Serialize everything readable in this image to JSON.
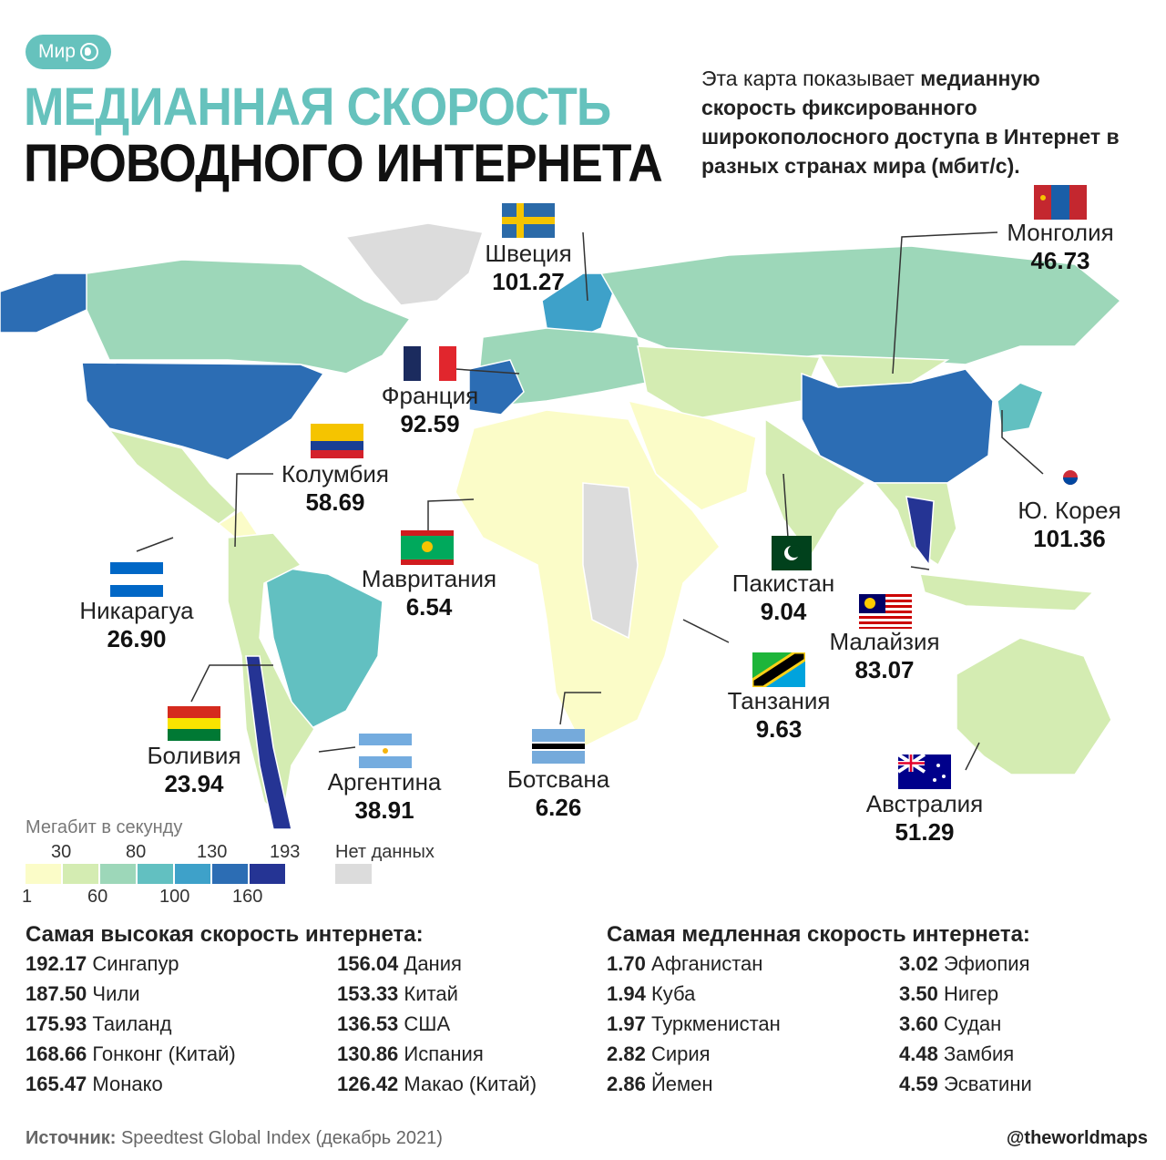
{
  "header": {
    "badge": "Мир",
    "badge_icon": "globe-icon",
    "title_line1": "МЕДИАННАЯ СКОРОСТЬ",
    "title_line2": "ПРОВОДНОГО ИНТЕРНЕТА",
    "description_pre": "Эта карта показывает ",
    "description_bold": "медианную скорость фиксированного широкополосного доступа в Интернет в разных странах мира (мбит/с).",
    "title_color": "#66c2bd"
  },
  "callouts": [
    {
      "name": "Швеция",
      "value": "101.27"
    },
    {
      "name": "Монголия",
      "value": "46.73"
    },
    {
      "name": "Франция",
      "value": "92.59"
    },
    {
      "name": "Колумбия",
      "value": "58.69"
    },
    {
      "name": "Ю. Корея",
      "value": "101.36"
    },
    {
      "name": "Мавритания",
      "value": "6.54"
    },
    {
      "name": "Пакистан",
      "value": "9.04"
    },
    {
      "name": "Никарагуа",
      "value": "26.90"
    },
    {
      "name": "Малайзия",
      "value": "83.07"
    },
    {
      "name": "Танзания",
      "value": "9.63"
    },
    {
      "name": "Боливия",
      "value": "23.94"
    },
    {
      "name": "Аргентина",
      "value": "38.91"
    },
    {
      "name": "Ботсвана",
      "value": "6.26"
    },
    {
      "name": "Австралия",
      "value": "51.29"
    }
  ],
  "legend": {
    "title": "Мегабит в секунду",
    "top_ticks": [
      "30",
      "80",
      "130",
      "193"
    ],
    "bottom_ticks": [
      "1",
      "60",
      "100",
      "160"
    ],
    "colors": [
      "#fbfcc8",
      "#d4ecb2",
      "#9dd7b9",
      "#62c0c1",
      "#3ea1c9",
      "#2c6db4",
      "#253494"
    ],
    "no_data_label": "Нет данных",
    "no_data_color": "#dcdcdc"
  },
  "fastest": {
    "title": "Самая высокая скорость интернета:",
    "items": [
      {
        "value": "192.17",
        "country": "Сингапур"
      },
      {
        "value": "187.50",
        "country": "Чили"
      },
      {
        "value": "175.93",
        "country": "Таиланд"
      },
      {
        "value": "168.66",
        "country": "Гонконг (Китай)"
      },
      {
        "value": "165.47",
        "country": "Монако"
      },
      {
        "value": "156.04",
        "country": "Дания"
      },
      {
        "value": "153.33",
        "country": "Китай"
      },
      {
        "value": "136.53",
        "country": "США"
      },
      {
        "value": "130.86",
        "country": "Испания"
      },
      {
        "value": "126.42",
        "country": "Макао (Китай)"
      }
    ]
  },
  "slowest": {
    "title": "Самая медленная скорость интернета:",
    "items": [
      {
        "value": "1.70",
        "country": "Афганистан"
      },
      {
        "value": "1.94",
        "country": "Куба"
      },
      {
        "value": "1.97",
        "country": "Туркменистан"
      },
      {
        "value": "2.82",
        "country": "Сирия"
      },
      {
        "value": "2.86",
        "country": "Йемен"
      },
      {
        "value": "3.02",
        "country": "Эфиопия"
      },
      {
        "value": "3.50",
        "country": "Нигер"
      },
      {
        "value": "3.60",
        "country": "Судан"
      },
      {
        "value": "4.48",
        "country": "Замбия"
      },
      {
        "value": "4.59",
        "country": "Эсватини"
      }
    ]
  },
  "footer": {
    "source_label": "Источник:",
    "source_text": " Speedtest Global Index (декабрь 2021)",
    "handle": "@theworldmaps"
  }
}
